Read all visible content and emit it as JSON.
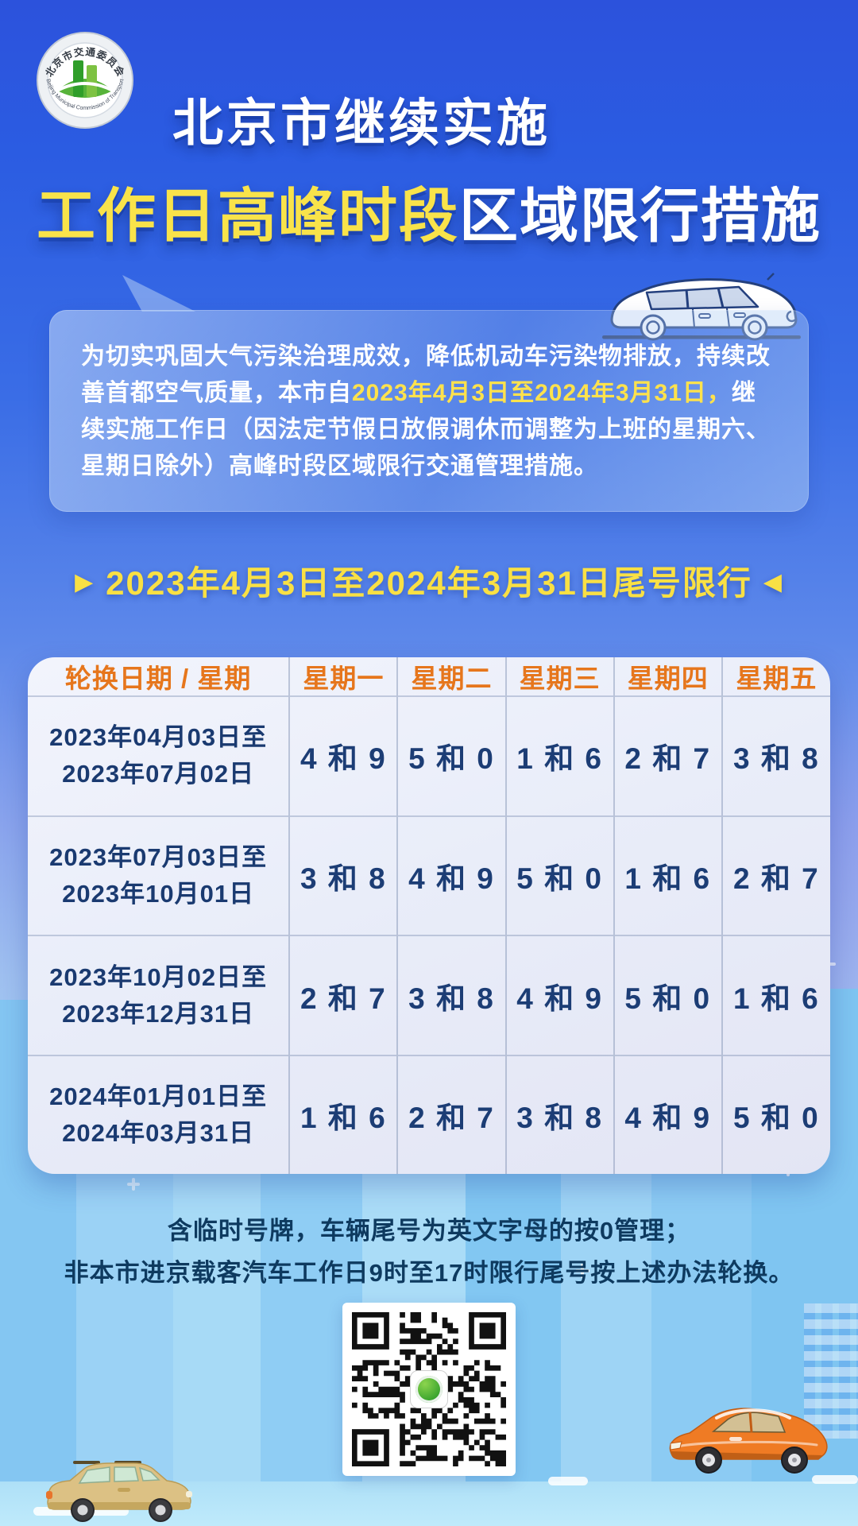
{
  "logo": {
    "top_text": "北京市交通委员会",
    "bottom_text": "Beijing Municipal Commission of Transport"
  },
  "title": {
    "line1": "北京市继续实施",
    "line2_highlight": "工作日高峰时段",
    "line2_rest": "区域限行措施"
  },
  "intro": {
    "pre": "为切实巩固大气污染治理成效，降低机动车污染物排放，持续改善首都空气质量，本市自",
    "highlight": "2023年4月3日至2024年3月31日，",
    "post": "继续实施工作日（因法定节假日放假调休而调整为上班的星期六、星期日除外）高峰时段区域限行交通管理措施。"
  },
  "section_heading": {
    "left_arrow": "▶",
    "text": "2023年4月3日至2024年3月31日尾号限行",
    "right_arrow": "◀"
  },
  "table": {
    "headers": [
      "轮换日期 / 星期",
      "星期一",
      "星期二",
      "星期三",
      "星期四",
      "星期五"
    ],
    "rows": [
      {
        "period_line1": "2023年04月03日至",
        "period_line2": "2023年07月02日",
        "values": [
          "4 和 9",
          "5 和 0",
          "1 和 6",
          "2 和 7",
          "3 和 8"
        ]
      },
      {
        "period_line1": "2023年07月03日至",
        "period_line2": "2023年10月01日",
        "values": [
          "3 和 8",
          "4 和 9",
          "5 和 0",
          "1 和 6",
          "2 和 7"
        ]
      },
      {
        "period_line1": "2023年10月02日至",
        "period_line2": "2023年12月31日",
        "values": [
          "2 和 7",
          "3 和 8",
          "4 和 9",
          "5 和 0",
          "1 和 6"
        ]
      },
      {
        "period_line1": "2024年01月01日至",
        "period_line2": "2024年03月31日",
        "values": [
          "1 和 6",
          "2 和 7",
          "3 和 8",
          "4 和 9",
          "5 和 0"
        ]
      }
    ]
  },
  "notes": [
    "含临时号牌，车辆尾号为英文字母的按0管理；",
    "非本市进京载客汽车工作日9时至17时限行尾号按上述办法轮换。"
  ],
  "colors": {
    "accent_yellow": "#f9e34a",
    "table_header_orange": "#e6761c",
    "table_text_navy": "#1a3a70",
    "note_navy": "#0e3a5f",
    "background_top_blue": "#2c52dc",
    "background_bottom_blue": "#bce9fb"
  }
}
